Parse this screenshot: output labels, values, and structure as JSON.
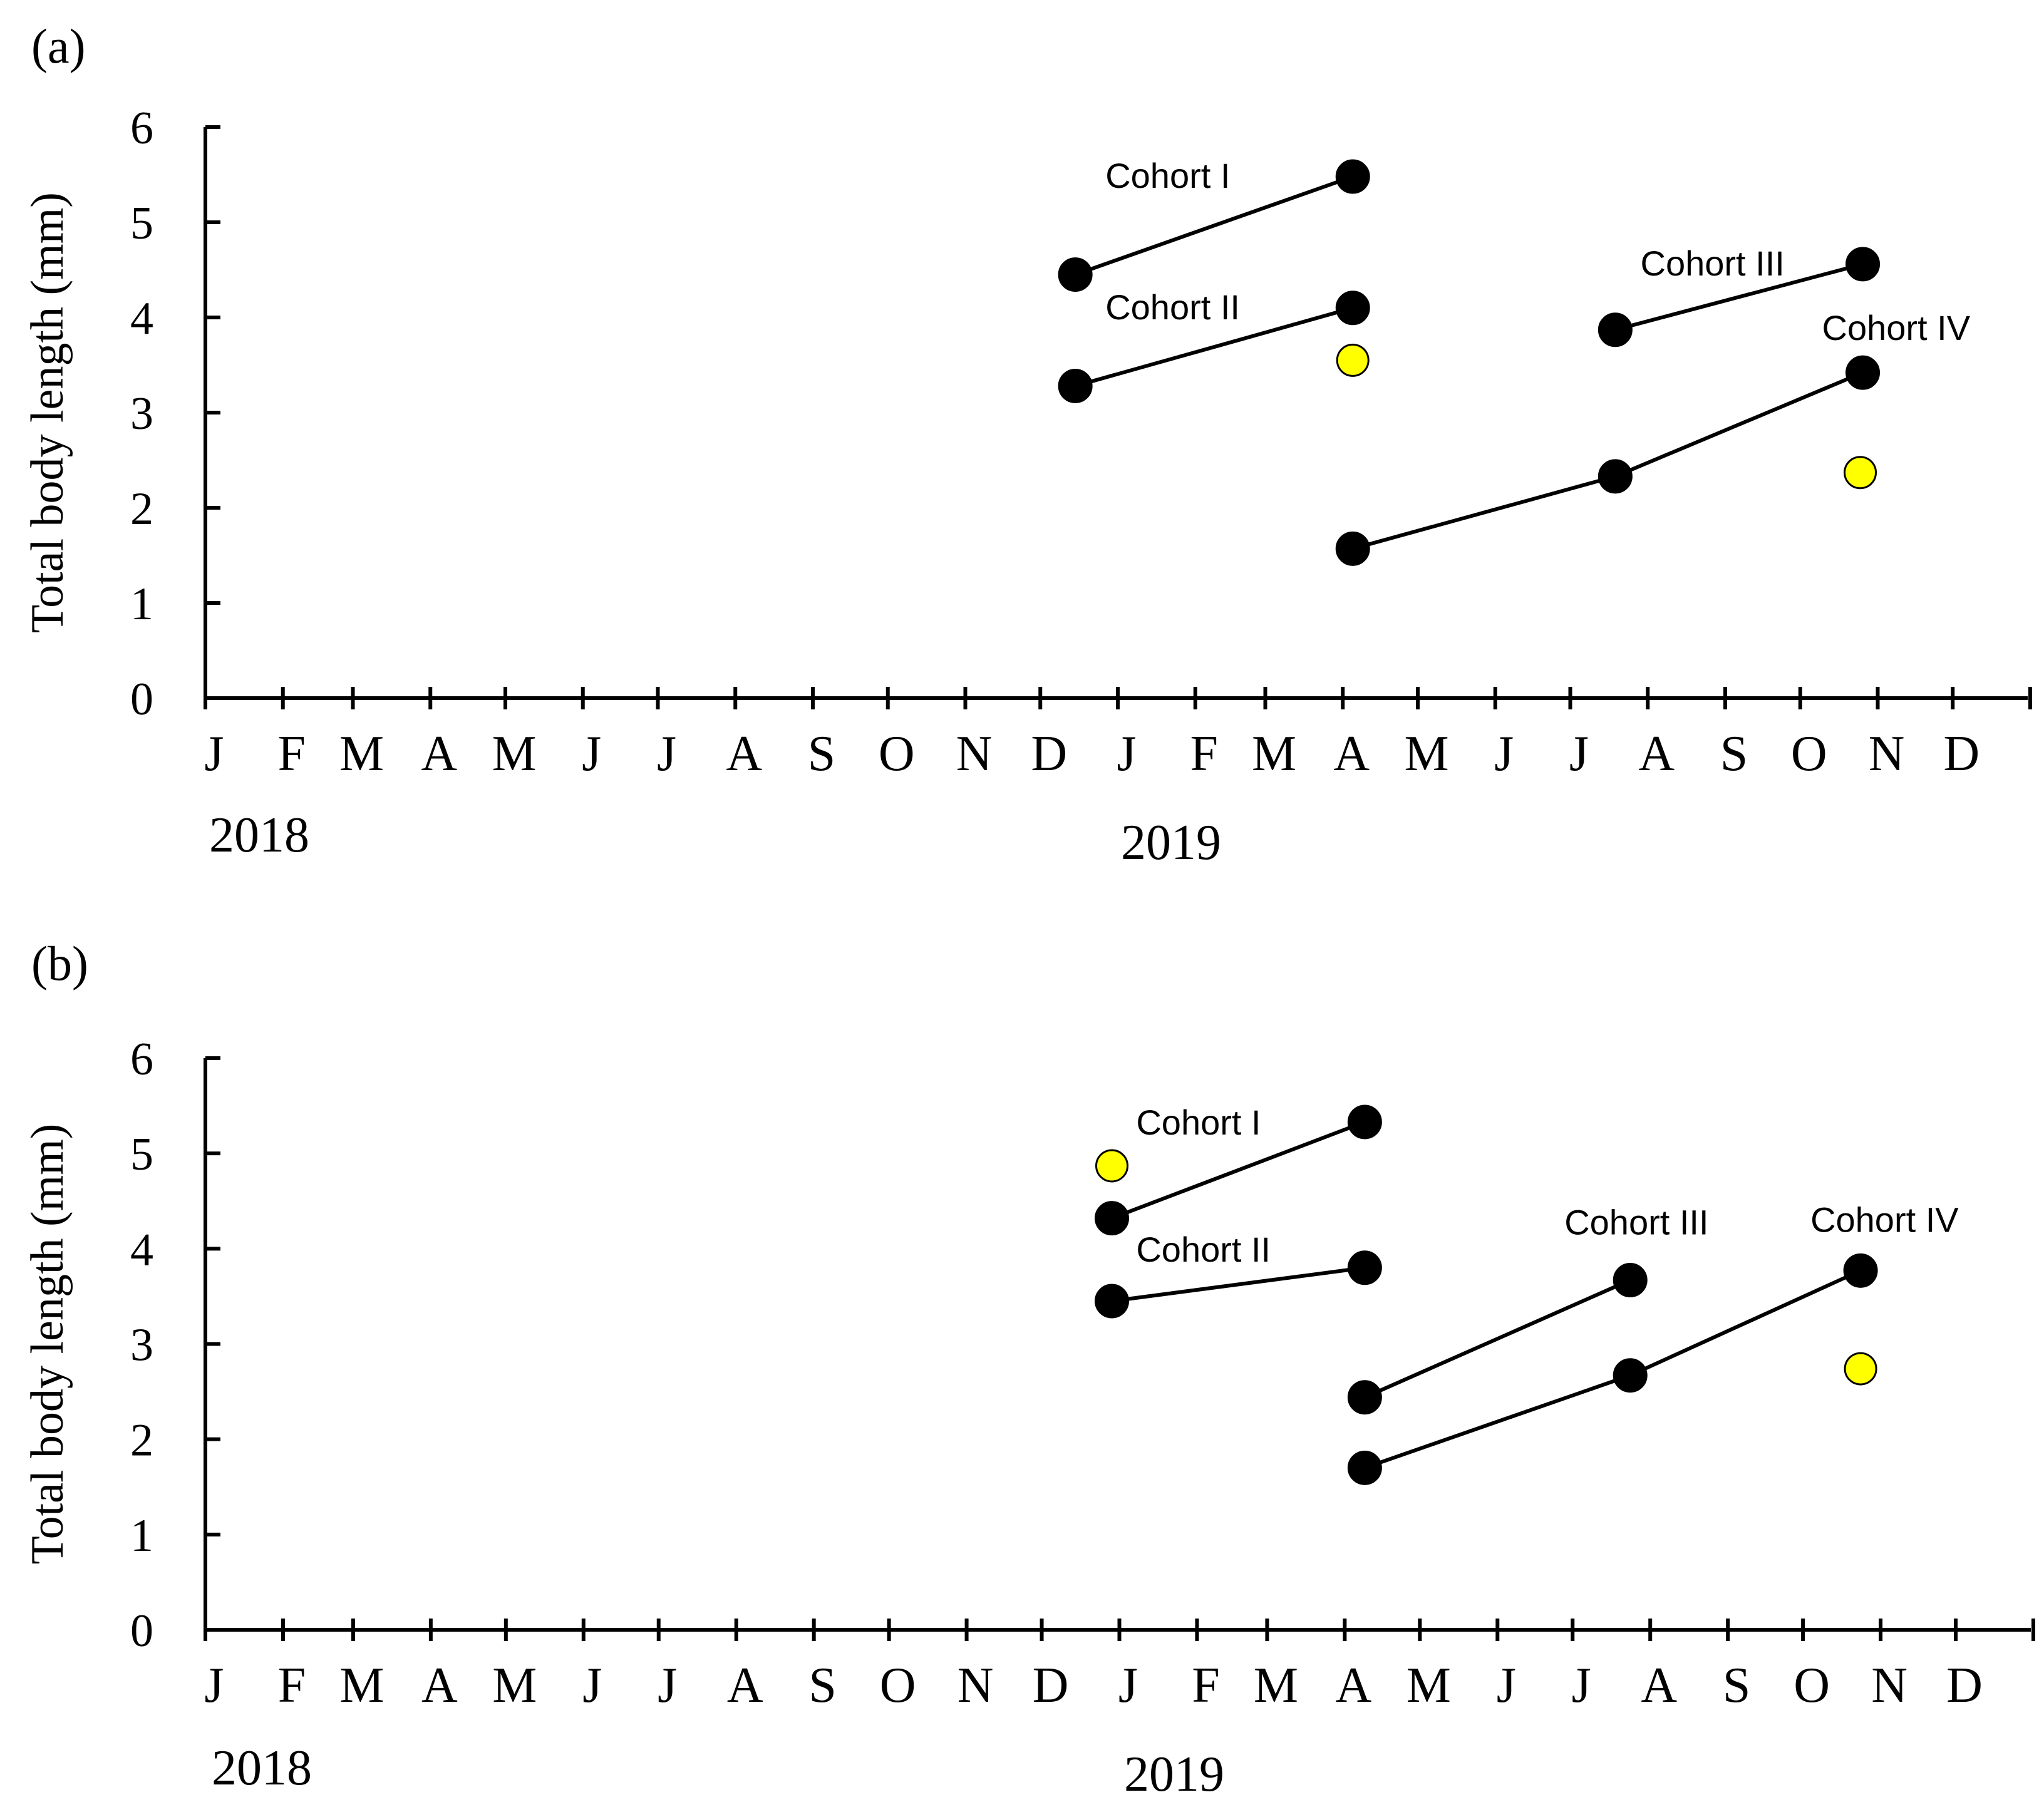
{
  "chart_data": [
    {
      "type": "scatter",
      "panel_label": "(a)",
      "ylabel": "Total body length (mm)",
      "ylim": [
        0,
        6
      ],
      "yticks": [
        0,
        1,
        2,
        3,
        4,
        5,
        6
      ],
      "xlim": [
        "2018-01-01",
        "2019-12-31"
      ],
      "month_labels": [
        "J",
        "F",
        "M",
        "A",
        "M",
        "J",
        "J",
        "A",
        "S",
        "O",
        "N",
        "D",
        "J",
        "F",
        "M",
        "A",
        "M",
        "J",
        "J",
        "A",
        "S",
        "O",
        "N",
        "D"
      ],
      "year_labels": [
        {
          "text": "2018",
          "at": "2018-01-01"
        },
        {
          "text": "2019",
          "at": "2018-12-01"
        }
      ],
      "series": [
        {
          "name": "Cohort I",
          "points": [
            [
              "2018-12-15",
              4.45
            ],
            [
              "2019-04-05",
              5.48
            ]
          ]
        },
        {
          "name": "Cohort II",
          "points": [
            [
              "2018-12-15",
              3.28
            ],
            [
              "2019-04-05",
              4.1
            ]
          ]
        },
        {
          "name": "Cohort III",
          "points": [
            [
              "2019-07-19",
              3.87
            ],
            [
              "2019-10-26",
              4.56
            ]
          ]
        },
        {
          "name": "Cohort IV",
          "points": [
            [
              "2019-04-05",
              1.57
            ],
            [
              "2019-07-19",
              2.33
            ],
            [
              "2019-10-26",
              3.42
            ]
          ]
        }
      ],
      "highlight_points": [
        [
          "2019-04-05",
          3.55
        ],
        [
          "2019-10-25",
          2.37
        ]
      ],
      "highlight_color": "#FFFF00",
      "point_color": "#000000"
    },
    {
      "type": "scatter",
      "panel_label": "(b)",
      "ylabel": "Total body length (mm)",
      "ylim": [
        0,
        6
      ],
      "yticks": [
        0,
        1,
        2,
        3,
        4,
        5,
        6
      ],
      "xlim": [
        "2018-01-01",
        "2019-12-31"
      ],
      "month_labels": [
        "J",
        "F",
        "M",
        "A",
        "M",
        "J",
        "J",
        "A",
        "S",
        "O",
        "N",
        "D",
        "J",
        "F",
        "M",
        "A",
        "M",
        "J",
        "J",
        "A",
        "S",
        "O",
        "N",
        "D"
      ],
      "year_labels": [
        {
          "text": "2018",
          "at": "2018-01-01"
        },
        {
          "text": "2019",
          "at": "2018-12-01"
        }
      ],
      "series": [
        {
          "name": "Cohort I",
          "points": [
            [
              "2018-12-29",
              4.32
            ],
            [
              "2019-04-09",
              5.33
            ]
          ]
        },
        {
          "name": "Cohort II",
          "points": [
            [
              "2018-12-29",
              3.45
            ],
            [
              "2019-04-09",
              3.8
            ]
          ]
        },
        {
          "name": "Cohort III",
          "points": [
            [
              "2019-04-09",
              2.44
            ],
            [
              "2019-07-24",
              3.67
            ]
          ]
        },
        {
          "name": "Cohort IV",
          "points": [
            [
              "2019-04-09",
              1.7
            ],
            [
              "2019-07-24",
              2.67
            ],
            [
              "2019-10-24",
              3.77
            ]
          ]
        }
      ],
      "highlight_points": [
        [
          "2018-12-29",
          4.87
        ],
        [
          "2019-10-24",
          2.74
        ]
      ],
      "highlight_color": "#FFFF00",
      "point_color": "#000000"
    }
  ]
}
